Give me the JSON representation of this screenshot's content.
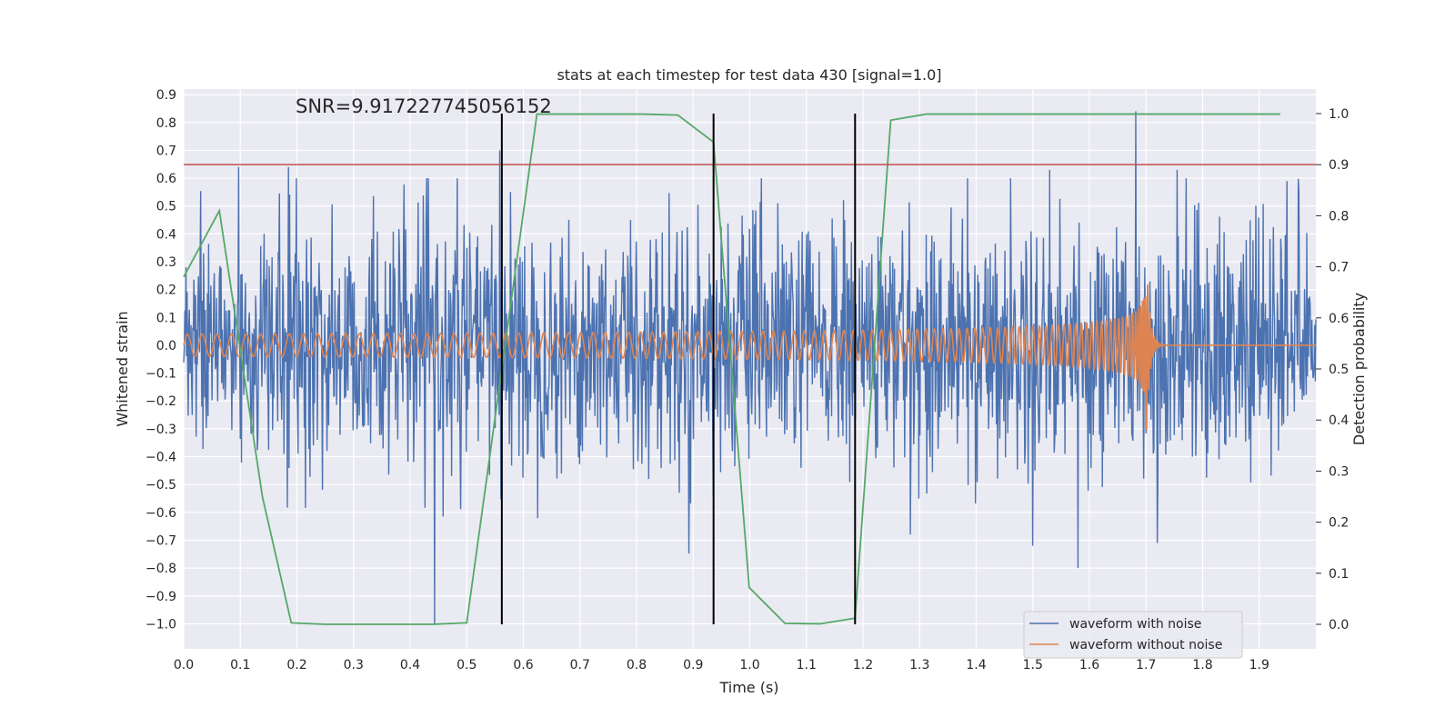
{
  "chart_data": {
    "type": "line",
    "title": "stats at each timestep for test data 430 [signal=1.0]",
    "annotation": "SNR=9.917227745056152",
    "xlabel": "Time (s)",
    "ylabel": "Whitened strain",
    "y2label": "Detection probability",
    "xlim": [
      0.0,
      2.0
    ],
    "ylim": [
      -1.09,
      0.92
    ],
    "y2lim": [
      -0.048,
      1.048
    ],
    "x_ticks": [
      "0.0",
      "0.1",
      "0.2",
      "0.3",
      "0.4",
      "0.5",
      "0.6",
      "0.7",
      "0.8",
      "0.9",
      "1.0",
      "1.1",
      "1.2",
      "1.3",
      "1.4",
      "1.5",
      "1.6",
      "1.7",
      "1.8",
      "1.9"
    ],
    "y_ticks": [
      "0.9",
      "0.8",
      "0.7",
      "0.6",
      "0.5",
      "0.4",
      "0.3",
      "0.2",
      "0.1",
      "0.0",
      "−0.1",
      "−0.2",
      "−0.3",
      "−0.4",
      "−0.5",
      "−0.6",
      "−0.7",
      "−0.8",
      "−0.9",
      "−1.0"
    ],
    "y2_ticks": [
      "1.0",
      "0.9",
      "0.8",
      "0.7",
      "0.6",
      "0.5",
      "0.4",
      "0.3",
      "0.2",
      "0.1",
      "0.0"
    ],
    "threshold": 0.9,
    "event_lines_x": [
      0.562,
      0.936,
      1.186
    ],
    "noisy_waveform": {
      "name": "waveform with noise",
      "color": "#4c72b0",
      "amplitude_std": 0.22,
      "peaks": [
        {
          "x": 0.004,
          "y": 0.28
        },
        {
          "x": 0.097,
          "y": 0.64
        },
        {
          "x": 0.185,
          "y": 0.64
        },
        {
          "x": 0.443,
          "y": -1.0
        },
        {
          "x": 0.558,
          "y": 0.7
        },
        {
          "x": 1.682,
          "y": 0.84
        },
        {
          "x": 1.72,
          "y": -0.71
        },
        {
          "x": 1.58,
          "y": -0.8
        },
        {
          "x": 1.5,
          "y": -0.72
        },
        {
          "x": 1.53,
          "y": 0.63
        },
        {
          "x": 1.755,
          "y": 0.63
        },
        {
          "x": 1.97,
          "y": 0.55
        }
      ]
    },
    "clean_waveform": {
      "name": "waveform without noise",
      "color": "#dd8452",
      "start_amplitude": 0.04,
      "start_frequency_hz": 38,
      "merger_time": 1.7,
      "peak_amplitude": 0.36
    },
    "probability": {
      "name": "detection probability",
      "color": "#55a868",
      "x": [
        0.0,
        0.063,
        0.139,
        0.19,
        0.25,
        0.44,
        0.5,
        0.562,
        0.624,
        0.81,
        0.873,
        0.936,
        0.999,
        1.062,
        1.124,
        1.186,
        1.249,
        1.312,
        1.937
      ],
      "y": [
        0.68,
        0.81,
        0.25,
        0.003,
        0.0,
        0.0,
        0.003,
        0.5,
        0.999,
        0.999,
        0.997,
        0.944,
        0.072,
        0.002,
        0.001,
        0.012,
        0.987,
        0.999,
        0.999
      ]
    }
  },
  "legend": {
    "noisy_label": "waveform with noise",
    "clean_label": "waveform without noise"
  },
  "colors": {
    "plot_background": "#eaeaf2",
    "grid": "#ffffff",
    "threshold_line": "#c44e52",
    "event_line": "#000000"
  }
}
